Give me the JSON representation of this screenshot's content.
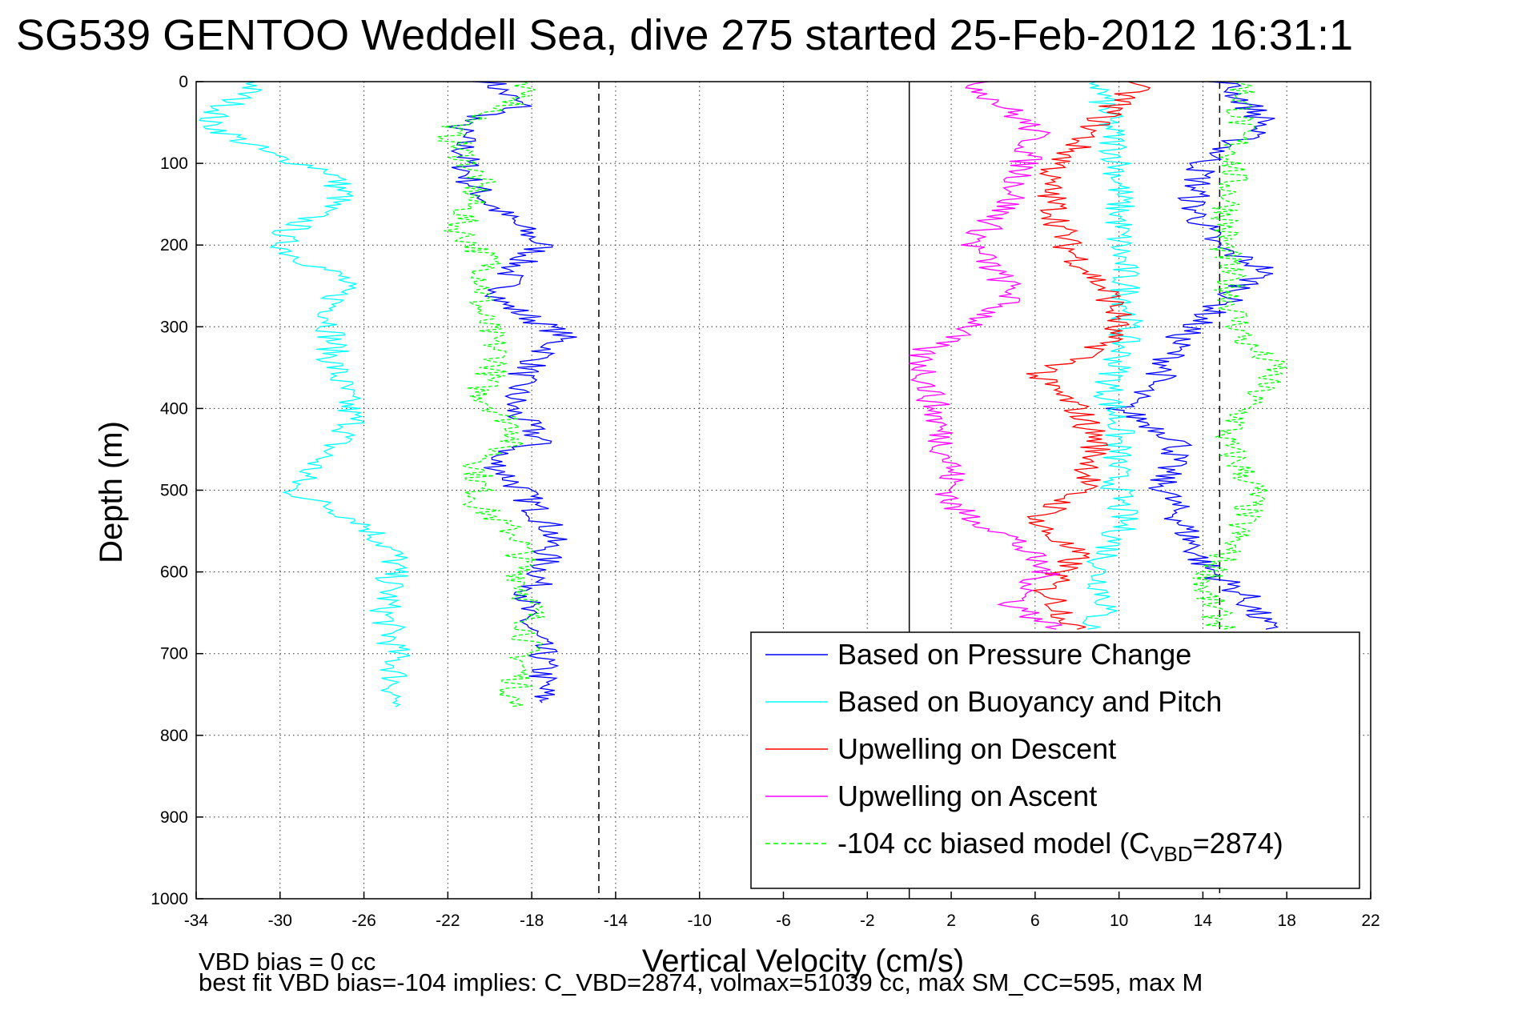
{
  "chart_data": {
    "type": "line",
    "title": "SG539 GENTOO Weddell Sea, dive 275 started 25-Feb-2012 16:31:1",
    "xlabel": "Vertical Velocity (cm/s)",
    "ylabel": "Depth (m)",
    "xlim": [
      -34,
      22
    ],
    "ylim": [
      0,
      1000
    ],
    "y_reversed": true,
    "grid": "dotted",
    "xticks": [
      "-34",
      "-30",
      "-26",
      "-22",
      "-18",
      "-14",
      "-10",
      "-6",
      "-2",
      "2",
      "6",
      "10",
      "14",
      "18",
      "22"
    ],
    "yticks": [
      "0",
      "100",
      "200",
      "300",
      "400",
      "500",
      "600",
      "700",
      "800",
      "900",
      "1000"
    ],
    "notes": [
      "VBD bias = 0 cc",
      "best fit VBD bias=-104 implies: C_VBD=2874, volmax=51039 cc, max SM_CC=595, max M"
    ],
    "legend": {
      "position": "lower-right",
      "entries": [
        {
          "label": "Based on Pressure Change",
          "color": "#0000ff",
          "dash": "solid"
        },
        {
          "label": "Based on Buoyancy and Pitch",
          "color": "#00ffff",
          "dash": "solid"
        },
        {
          "label": "Upwelling on Descent",
          "color": "#ff0000",
          "dash": "solid"
        },
        {
          "label": "Upwelling on Ascent",
          "color": "#ff00ff",
          "dash": "solid"
        },
        {
          "label": "-104 cc biased model (C",
          "sub": "VBD",
          "suffix": "=2874)",
          "color": "#00ff00",
          "dash": "dashed"
        }
      ]
    },
    "reference_lines": [
      {
        "x": -14.8,
        "style": "dashed",
        "color": "#000000"
      },
      {
        "x": 0,
        "style": "solid",
        "color": "#000000"
      },
      {
        "x": 14.8,
        "style": "dashed",
        "color": "#000000"
      }
    ],
    "series": [
      {
        "name": "Based on Pressure Change (descent)",
        "color": "#0000ff",
        "x": [
          -20,
          -18.5,
          -21.5,
          -21,
          -20,
          -17.5,
          -19,
          -19.5,
          -16.5,
          -18.5,
          -19,
          -17.5,
          -20,
          -18.5,
          -17,
          -17.5,
          -18.5,
          -17.5,
          -17.5
        ],
        "y": [
          0,
          30,
          50,
          120,
          150,
          200,
          230,
          270,
          310,
          360,
          400,
          440,
          460,
          500,
          550,
          600,
          650,
          700,
          760
        ]
      },
      {
        "name": "Based on Buoyancy and Pitch (descent)",
        "color": "#00ffff",
        "x": [
          -31,
          -33.5,
          -30.5,
          -27.5,
          -27,
          -30,
          -29.5,
          -27,
          -27.5,
          -27.5,
          -26.5,
          -29.5,
          -26,
          -24.5,
          -25,
          -24.5,
          -24.5
        ],
        "y": [
          0,
          50,
          90,
          110,
          140,
          190,
          210,
          240,
          280,
          340,
          420,
          500,
          540,
          580,
          650,
          700,
          765
        ]
      },
      {
        "name": "-104 cc biased model (descent)",
        "color": "#00ff00",
        "x": [
          -19,
          -18.2,
          -22,
          -20.5,
          -21.5,
          -20,
          -20.5,
          -19.5,
          -20.5,
          -18.5,
          -20.5,
          -20.5,
          -18.5,
          -18.5,
          -18,
          -18.3,
          -19
        ],
        "y": [
          0,
          20,
          60,
          120,
          180,
          220,
          280,
          340,
          380,
          430,
          470,
          520,
          560,
          600,
          650,
          700,
          765
        ]
      },
      {
        "name": "Based on Pressure Change (ascent)",
        "color": "#0000ff",
        "x": [
          15,
          17,
          14,
          13.5,
          14.5,
          17,
          15,
          13,
          12,
          10,
          13,
          12,
          13,
          14,
          16,
          17
        ],
        "y": [
          0,
          50,
          100,
          150,
          200,
          230,
          270,
          310,
          360,
          400,
          440,
          490,
          540,
          590,
          630,
          670
        ]
      },
      {
        "name": "Based on Buoyancy and Pitch (ascent)",
        "color": "#00ffff",
        "x": [
          9,
          10,
          10,
          10.5,
          10,
          9.5,
          10,
          9.8,
          10.2,
          9,
          9.5,
          8.5
        ],
        "y": [
          0,
          100,
          200,
          280,
          340,
          380,
          420,
          480,
          540,
          600,
          640,
          670
        ]
      },
      {
        "name": "-104 cc biased model (ascent)",
        "color": "#00ff00",
        "x": [
          16,
          15.5,
          15,
          15.5,
          16,
          17.5,
          16,
          15,
          16.5,
          15.5,
          14,
          15
        ],
        "y": [
          0,
          100,
          200,
          280,
          320,
          350,
          400,
          440,
          500,
          560,
          620,
          670
        ]
      },
      {
        "name": "Upwelling on Descent",
        "color": "#ff0000",
        "x": [
          11,
          9,
          6.5,
          7.5,
          8.5,
          9.5,
          10,
          9,
          6,
          8,
          9,
          8.5,
          6,
          8,
          6.5,
          8
        ],
        "y": [
          0,
          50,
          120,
          200,
          230,
          260,
          290,
          330,
          360,
          400,
          440,
          490,
          540,
          580,
          620,
          670
        ]
      },
      {
        "name": "Upwelling on Ascent",
        "color": "#ff00ff",
        "x": [
          3,
          6,
          5,
          3,
          5,
          3,
          0.5,
          1,
          1.5,
          2,
          2,
          5,
          6.5,
          5,
          7
        ],
        "y": [
          0,
          60,
          140,
          200,
          260,
          300,
          330,
          380,
          430,
          470,
          520,
          560,
          600,
          640,
          670
        ]
      }
    ]
  }
}
